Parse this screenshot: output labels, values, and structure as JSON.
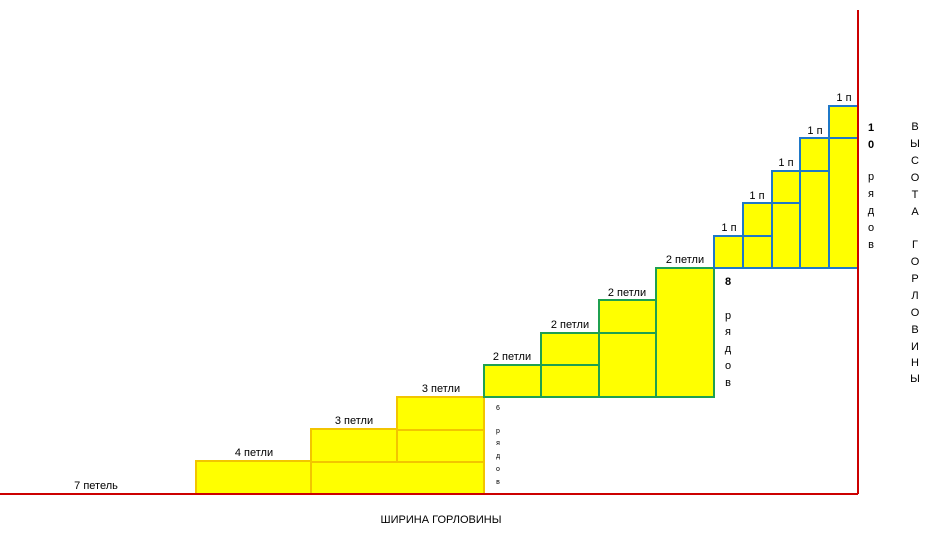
{
  "colors": {
    "fill": "#ffff00",
    "outline_bottom": "#f2c500",
    "outline_middle": "#1fa050",
    "outline_top": "#1f78c8",
    "axis": "#cc0000"
  },
  "labels": {
    "base": "7 петель",
    "s1": "4 петли",
    "s2": "3 петли",
    "s3": "3 петли",
    "m1": "2 петли",
    "m2": "2 петли",
    "m3": "2 петли",
    "m4": "2 петли",
    "t1": "1 п",
    "t2": "1 п",
    "t3": "1 п",
    "t4": "1 п",
    "t5": "1 п"
  },
  "rows": {
    "six": {
      "num": "6",
      "letters": [
        "р",
        "я",
        "д",
        "о",
        "в"
      ]
    },
    "eight": {
      "num": "8",
      "letters": [
        "р",
        "я",
        "д",
        "о",
        "в"
      ]
    },
    "ten": {
      "num": [
        "1",
        "0"
      ],
      "letters": [
        "р",
        "я",
        "д",
        "о",
        "в"
      ]
    }
  },
  "axis_labels": {
    "width": "ШИРИНА ГОРЛОВИНЫ",
    "height_word1": [
      "В",
      "Ы",
      "С",
      "О",
      "Т",
      "А"
    ],
    "height_word2": [
      "Г",
      "О",
      "Р",
      "Л",
      "О",
      "В",
      "И",
      "Н",
      "Ы"
    ]
  }
}
